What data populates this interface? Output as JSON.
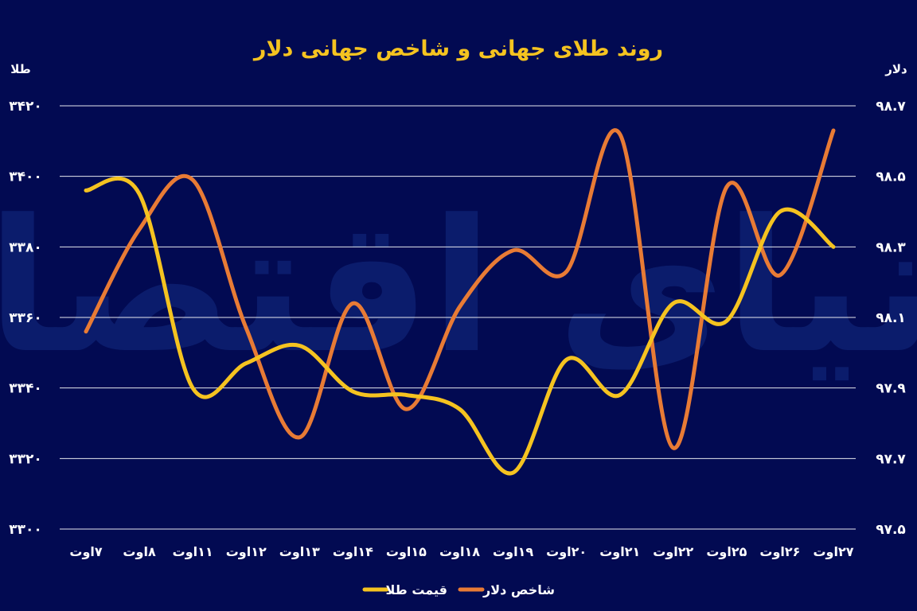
{
  "chart_data": {
    "type": "line",
    "title": "روند طلای جهانی و شاخص جهانی دلار",
    "y_left": {
      "label": "طلا",
      "range": [
        3300,
        3420
      ],
      "ticks": [
        3300,
        3320,
        3340,
        3360,
        3380,
        3400,
        3420
      ],
      "tick_labels": [
        "۳۳۰۰",
        "۳۳۲۰",
        "۳۳۴۰",
        "۳۳۶۰",
        "۳۳۸۰",
        "۳۴۰۰",
        "۳۴۲۰"
      ]
    },
    "y_right": {
      "label": "دلار",
      "range": [
        97.5,
        98.7
      ],
      "ticks": [
        97.5,
        97.7,
        97.9,
        98.1,
        98.3,
        98.5,
        98.7
      ],
      "tick_labels": [
        "۹۷.۵",
        "۹۷.۷",
        "۹۷.۹",
        "۹۸.۱",
        "۹۸.۳",
        "۹۸.۵",
        "۹۸.۷"
      ]
    },
    "categories": [
      "۷اوت",
      "۸اوت",
      "۱۱اوت",
      "۱۲اوت",
      "۱۳اوت",
      "۱۴اوت",
      "۱۵اوت",
      "۱۸اوت",
      "۱۹اوت",
      "۲۰اوت",
      "۲۱اوت",
      "۲۲اوت",
      "۲۵اوت",
      "۲۶اوت",
      "۲۷اوت"
    ],
    "series": [
      {
        "name": "قیمت طلا",
        "axis": "left",
        "color": "#f5c320",
        "values": [
          3396,
          3395,
          3340,
          3347,
          3352,
          3339,
          3338,
          3334,
          3316,
          3348,
          3338,
          3364,
          3359,
          3390,
          3380
        ]
      },
      {
        "name": "شاخص دلار",
        "axis": "right",
        "color": "#e87b35",
        "values": [
          98.06,
          98.35,
          98.49,
          98.07,
          97.76,
          98.14,
          97.84,
          98.13,
          98.29,
          98.23,
          98.62,
          97.73,
          98.47,
          98.22,
          98.63
        ]
      }
    ],
    "grid": true,
    "legend_position": "bottom-center"
  },
  "watermark": "دنیای اقتصاد"
}
